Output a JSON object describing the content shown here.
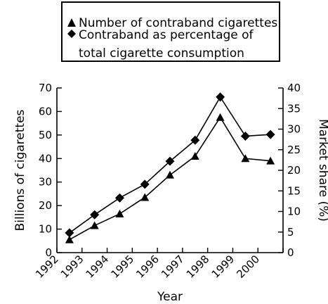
{
  "chart_data": {
    "type": "line",
    "title": "",
    "x": [
      "1992",
      "1993",
      "1994",
      "1995",
      "1996",
      "1997",
      "1998",
      "1999",
      "2000"
    ],
    "xlabel": "Year",
    "ylabel_left": "Billions of cigarettes",
    "ylabel_right": "Market share (%)",
    "ylim_left": [
      0,
      70
    ],
    "ylim_right": [
      0,
      40
    ],
    "yticks_left": [
      "0",
      "10",
      "20",
      "30",
      "40",
      "50",
      "60",
      "70"
    ],
    "yticks_right": [
      "0",
      "5",
      "10",
      "15",
      "20",
      "25",
      "30",
      "35",
      "40"
    ],
    "grid": false,
    "legend_position": "top",
    "series": [
      {
        "name": "Number of contraband cigarettes",
        "marker": "triangle",
        "axis": "left",
        "values": [
          5.5,
          11.5,
          16.5,
          23.5,
          33,
          41,
          57.5,
          40,
          39
        ]
      },
      {
        "name": "Contraband as percentage of total cigarette consumption",
        "legend_lines": [
          "Contraband as percentage of",
          "total cigarette consumption"
        ],
        "marker": "diamond",
        "axis": "right",
        "values": [
          4.8,
          9.2,
          13.3,
          16.6,
          22.2,
          27.3,
          37.8,
          28.3,
          28.7
        ]
      }
    ]
  }
}
